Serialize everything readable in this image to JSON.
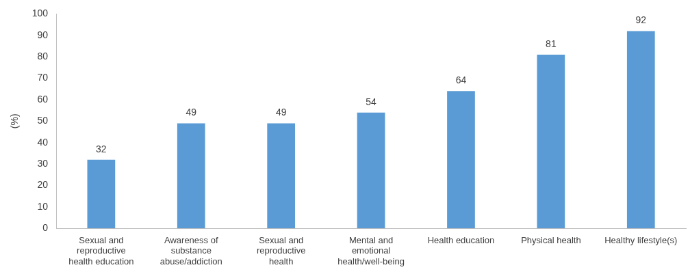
{
  "chart_data": {
    "type": "bar",
    "ylabel": "(%)",
    "categories": [
      "Sexual and reproductive health education",
      "Awareness of substance abuse/addiction",
      "Sexual and reproductive health",
      "Mental and emotional health/well-being",
      "Health education",
      "Physical health",
      "Healthy lifestyle(s)"
    ],
    "values": [
      32,
      49,
      49,
      54,
      64,
      81,
      92
    ],
    "color": "#5b9bd5",
    "ylim": [
      0,
      100
    ],
    "yticks": [
      0,
      10,
      20,
      30,
      40,
      50,
      60,
      70,
      80,
      90,
      100
    ],
    "grid": false,
    "legend": false,
    "data_labels": true
  }
}
